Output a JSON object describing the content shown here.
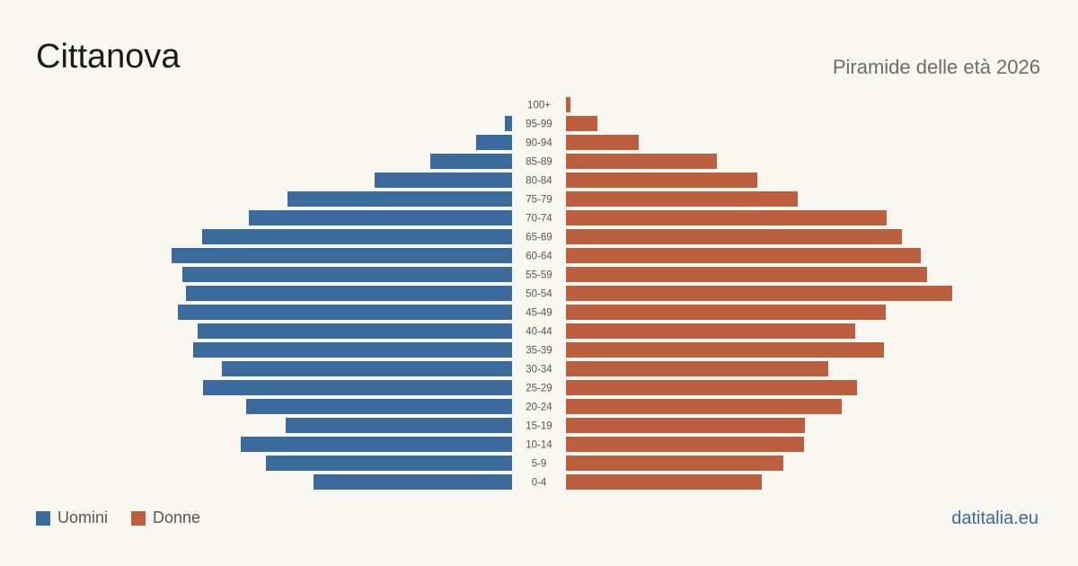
{
  "title": "Cittanova",
  "subtitle": "Piramide delle età 2026",
  "site": "datitalia.eu",
  "colors": {
    "men": "#3b6a9c",
    "women": "#bb5f3e",
    "background": "#f9f7f2"
  },
  "chart_data": {
    "type": "bar",
    "orientation": "horizontal",
    "categories": [
      "100+",
      "95-99",
      "90-94",
      "85-89",
      "80-84",
      "75-79",
      "70-74",
      "65-69",
      "60-64",
      "55-59",
      "50-54",
      "45-49",
      "40-44",
      "35-39",
      "30-34",
      "25-29",
      "20-24",
      "15-19",
      "10-14",
      "5-9",
      "0-4"
    ],
    "series": [
      {
        "name": "Uomini",
        "values": [
          0,
          8,
          40,
          91,
          153,
          250,
          293,
          345,
          379,
          367,
          363,
          372,
          350,
          355,
          323,
          344,
          296,
          252,
          302,
          274,
          221
        ]
      },
      {
        "name": "Donne",
        "values": [
          5,
          35,
          81,
          168,
          213,
          258,
          357,
          374,
          395,
          402,
          430,
          356,
          322,
          354,
          292,
          324,
          307,
          266,
          265,
          242,
          218
        ]
      }
    ],
    "legend": "bottom-left"
  }
}
